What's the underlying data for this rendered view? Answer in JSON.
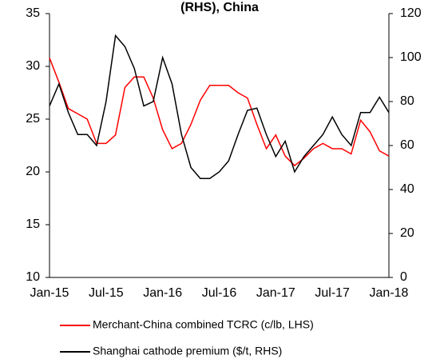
{
  "chart_data": {
    "type": "line",
    "title": "(RHS), China",
    "categories": [
      "Jan-15",
      null,
      null,
      null,
      null,
      null,
      "Jul-15",
      null,
      null,
      null,
      null,
      null,
      "Jan-16",
      null,
      null,
      null,
      null,
      null,
      "Jul-16",
      null,
      null,
      null,
      null,
      null,
      "Jan-17",
      null,
      null,
      null,
      null,
      null,
      "Jul-17",
      null,
      null,
      null,
      null,
      null,
      "Jan-18"
    ],
    "series": [
      {
        "name": "Merchant-China combined TCRC (c/lb, LHS)",
        "color": "#ff0000",
        "axis": "y",
        "values": [
          30.8,
          28.5,
          26,
          25.5,
          25,
          22.7,
          22.7,
          23.5,
          28,
          29,
          29,
          27,
          24,
          22.2,
          22.7,
          24.5,
          26.8,
          28.2,
          28.2,
          28.2,
          27.5,
          27,
          24.5,
          22.2,
          23.5,
          21.5,
          20.6,
          21.3,
          22.2,
          22.7,
          22.2,
          22.2,
          21.7,
          24.9,
          23.8,
          22,
          21.5
        ]
      },
      {
        "name": "Shanghai cathode premium ($/t, RHS)",
        "color": "#000000",
        "axis": "y2",
        "values": [
          78,
          88,
          75,
          65,
          65,
          60,
          80,
          110,
          105,
          95,
          78,
          80,
          100,
          88,
          65,
          50,
          45,
          45,
          48,
          53,
          65,
          76,
          77,
          65,
          55,
          62,
          48,
          55,
          60,
          65,
          73,
          65,
          60,
          75,
          75,
          82,
          75
        ]
      }
    ],
    "ylim": [
      10,
      35
    ],
    "yticks": [
      10,
      15,
      20,
      25,
      30,
      35
    ],
    "y2lim": [
      0,
      120
    ],
    "y2ticks": [
      0,
      20,
      40,
      60,
      80,
      100,
      120
    ]
  }
}
